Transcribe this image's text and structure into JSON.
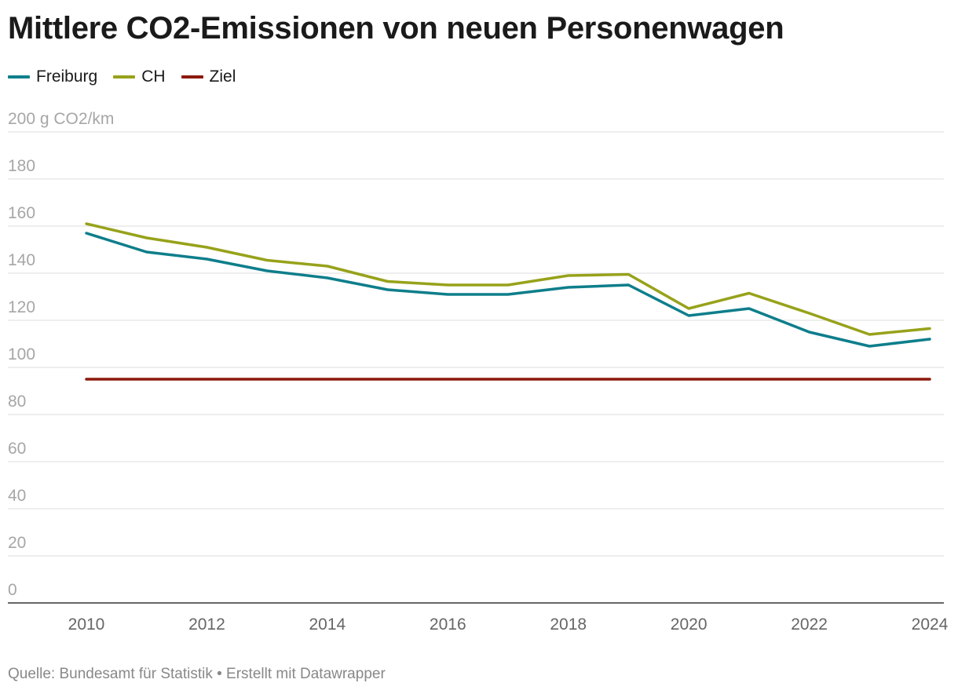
{
  "title": "Mittlere CO2-Emissionen von neuen Personenwagen",
  "source": "Quelle: Bundesamt für Statistik • Erstellt mit Datawrapper",
  "chart_data": {
    "type": "line",
    "title": "Mittlere CO2-Emissionen von neuen Personenwagen",
    "x": [
      2010,
      2011,
      2012,
      2013,
      2014,
      2015,
      2016,
      2017,
      2018,
      2019,
      2020,
      2021,
      2022,
      2023,
      2024
    ],
    "x_ticks": [
      2010,
      2012,
      2014,
      2016,
      2018,
      2020,
      2022,
      2024
    ],
    "y_ticks": [
      0,
      20,
      40,
      60,
      80,
      100,
      120,
      140,
      160,
      180,
      200
    ],
    "y_tick_labels": [
      "0",
      "20",
      "40",
      "60",
      "80",
      "100",
      "120",
      "140",
      "160",
      "180",
      "200 g CO2/km"
    ],
    "ylim": [
      0,
      200
    ],
    "xlim": [
      2010,
      2024
    ],
    "grid": true,
    "legend_position": "top-left",
    "series": [
      {
        "name": "Freiburg",
        "color": "#0e7e8b",
        "values": [
          157,
          149,
          146,
          141,
          138,
          133,
          131,
          131,
          134,
          135,
          122,
          125,
          115,
          109,
          112
        ]
      },
      {
        "name": "CH",
        "color": "#97a21a",
        "values": [
          161,
          155,
          151,
          145.5,
          143,
          136.5,
          135,
          135,
          139,
          139.5,
          125,
          131.5,
          123,
          114,
          116.5
        ]
      },
      {
        "name": "Ziel",
        "color": "#8b1a0c",
        "values": [
          95,
          95,
          95,
          95,
          95,
          95,
          95,
          95,
          95,
          95,
          95,
          95,
          95,
          95,
          95
        ]
      }
    ]
  }
}
